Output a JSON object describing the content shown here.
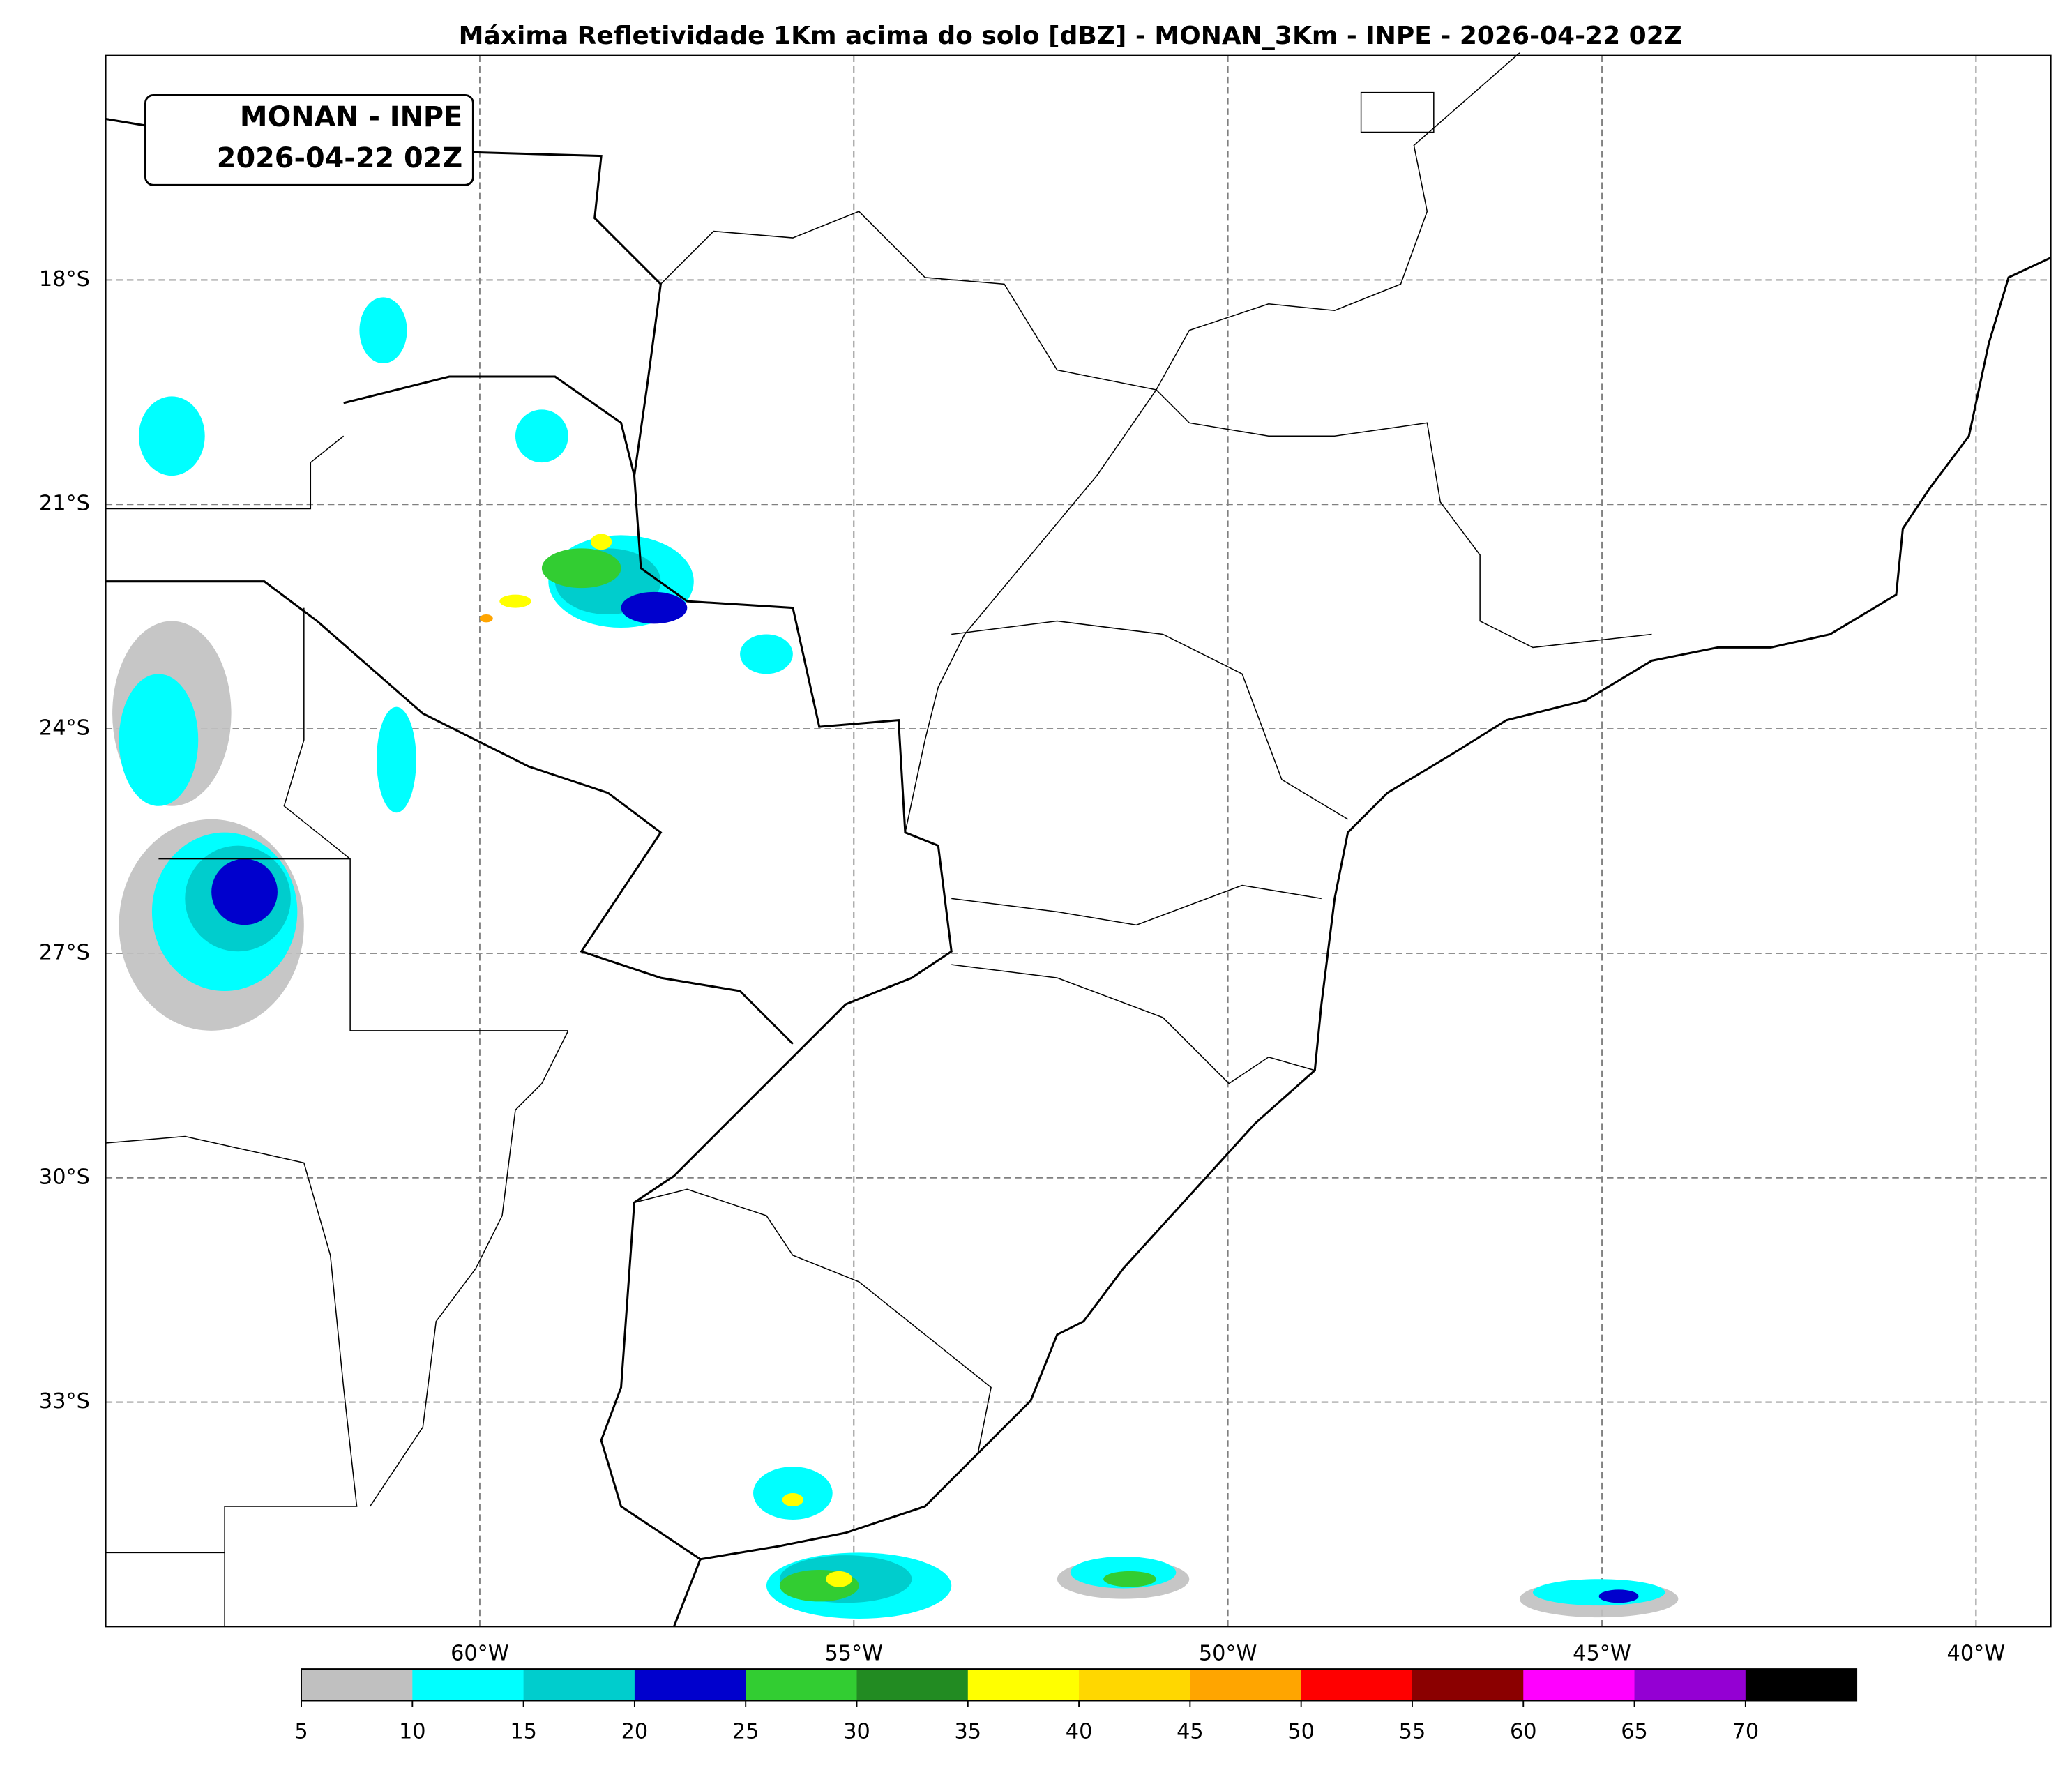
{
  "title": "Máxima Refletividade 1Km acima do solo [dBZ] - MONAN_3Km - INPE - 2026-04-22 02Z",
  "stamp": {
    "line1": "MONAN - INPE",
    "line2": "2026-04-22 02Z"
  },
  "lon_range": [
    -65,
    -39
  ],
  "lat_range": [
    -15,
    -36
  ],
  "lat_ticks": [
    {
      "value": -18,
      "label": "18°S"
    },
    {
      "value": -21,
      "label": "21°S"
    },
    {
      "value": -24,
      "label": "24°S"
    },
    {
      "value": -27,
      "label": "27°S"
    },
    {
      "value": -30,
      "label": "30°S"
    },
    {
      "value": -33,
      "label": "33°S"
    }
  ],
  "lon_ticks": [
    {
      "value": -60,
      "label": "60°W"
    },
    {
      "value": -55,
      "label": "55°W"
    },
    {
      "value": -50,
      "label": "50°W"
    },
    {
      "value": -45,
      "label": "45°W"
    },
    {
      "value": -40,
      "label": "40°W"
    }
  ],
  "colorbar": {
    "bounds": [
      5,
      10,
      15,
      20,
      25,
      30,
      35,
      40,
      45,
      50,
      55,
      60,
      65,
      70
    ],
    "colors": [
      "#c0c0c0",
      "#00ffff",
      "#00cdcd",
      "#0000cd",
      "#32cd32",
      "#228b22",
      "#ffff00",
      "#ffd700",
      "#ffa500",
      "#ff0000",
      "#8b0000",
      "#ff00ff",
      "#9400d3",
      "#000000"
    ]
  }
}
